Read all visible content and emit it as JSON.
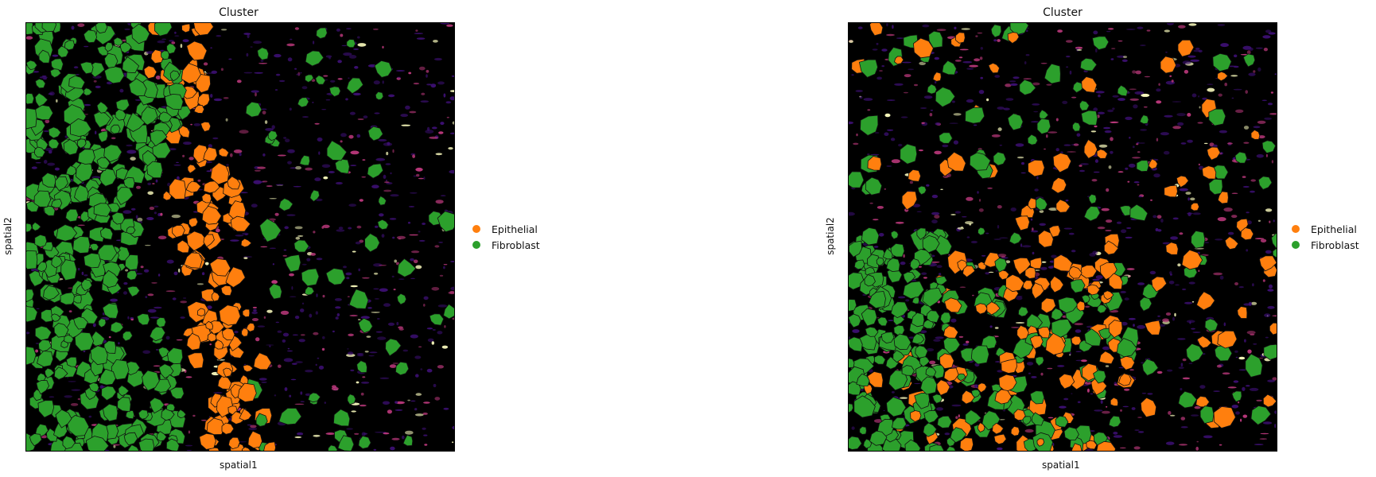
{
  "colors": {
    "epithelial": "#ff7f0e",
    "fibroblast": "#2ca02c",
    "background": "#000000",
    "signal_low": "#3b0f70",
    "signal_mid": "#b73779",
    "signal_high": "#fcfdbf"
  },
  "panels": [
    {
      "title": "Cluster",
      "xlabel": "spatial1",
      "ylabel": "spatial2",
      "legend": [
        {
          "label": "Epithelial",
          "color_key": "epithelial"
        },
        {
          "label": "Fibroblast",
          "color_key": "fibroblast"
        }
      ]
    },
    {
      "title": "Cluster",
      "xlabel": "spatial1",
      "ylabel": "spatial2",
      "legend": [
        {
          "label": "Epithelial",
          "color_key": "epithelial"
        },
        {
          "label": "Fibroblast",
          "color_key": "fibroblast"
        }
      ]
    }
  ]
}
